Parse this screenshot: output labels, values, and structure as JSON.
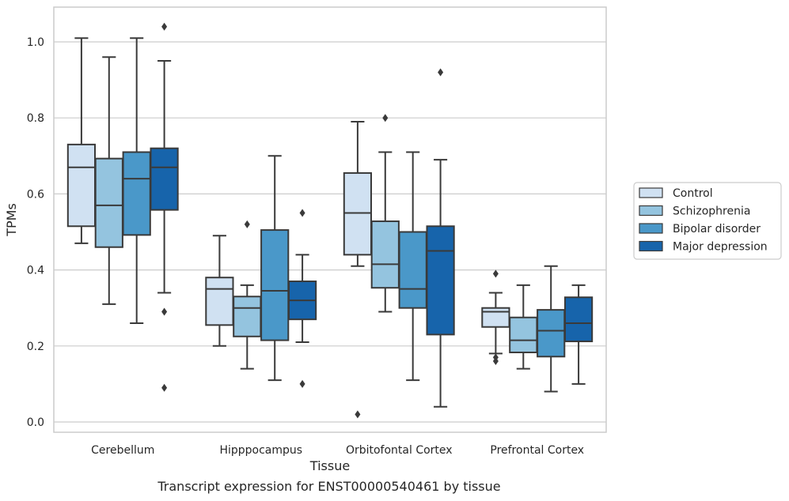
{
  "caption": "Transcript expression for ENST00000540461 by tissue",
  "colors": {
    "control": "#d0e1f2",
    "schizophrenia": "#94c4df",
    "bipolar": "#4a98c9",
    "depression": "#1764ab",
    "line": "#3a3a3a",
    "grid": "#cccccc",
    "frame": "#cccccc"
  },
  "chart_data": {
    "type": "box",
    "xlabel": "Tissue",
    "ylabel": "TPMs",
    "ylim": [
      -0.03,
      1.09
    ],
    "yticks": [
      "0.0",
      "0.2",
      "0.4",
      "0.6",
      "0.8",
      "1.0"
    ],
    "grid": "horizontal",
    "legend_position": "right",
    "categories": [
      "Cerebellum",
      "Hipppocampus",
      "Orbitofontal Cortex",
      "Prefrontal Cortex"
    ],
    "series": [
      {
        "name": "Control",
        "boxes": [
          {
            "whislo": 0.47,
            "q1": 0.515,
            "med": 0.67,
            "q3": 0.73,
            "whishi": 1.01,
            "fliers": []
          },
          {
            "whislo": 0.2,
            "q1": 0.255,
            "med": 0.35,
            "q3": 0.38,
            "whishi": 0.49,
            "fliers": []
          },
          {
            "whislo": 0.41,
            "q1": 0.44,
            "med": 0.55,
            "q3": 0.655,
            "whishi": 0.79,
            "fliers": [
              0.02
            ]
          },
          {
            "whislo": 0.18,
            "q1": 0.25,
            "med": 0.29,
            "q3": 0.3,
            "whishi": 0.34,
            "fliers": [
              0.39,
              0.17,
              0.16
            ]
          }
        ]
      },
      {
        "name": "Schizophrenia",
        "boxes": [
          {
            "whislo": 0.31,
            "q1": 0.46,
            "med": 0.57,
            "q3": 0.693,
            "whishi": 0.96,
            "fliers": []
          },
          {
            "whislo": 0.14,
            "q1": 0.225,
            "med": 0.3,
            "q3": 0.33,
            "whishi": 0.36,
            "fliers": [
              0.52
            ]
          },
          {
            "whislo": 0.29,
            "q1": 0.353,
            "med": 0.415,
            "q3": 0.528,
            "whishi": 0.71,
            "fliers": [
              0.8
            ]
          },
          {
            "whislo": 0.14,
            "q1": 0.183,
            "med": 0.215,
            "q3": 0.275,
            "whishi": 0.36,
            "fliers": []
          }
        ]
      },
      {
        "name": "Bipolar disorder",
        "boxes": [
          {
            "whislo": 0.26,
            "q1": 0.492,
            "med": 0.64,
            "q3": 0.71,
            "whishi": 1.01,
            "fliers": []
          },
          {
            "whislo": 0.11,
            "q1": 0.215,
            "med": 0.345,
            "q3": 0.505,
            "whishi": 0.7,
            "fliers": []
          },
          {
            "whislo": 0.11,
            "q1": 0.3,
            "med": 0.35,
            "q3": 0.5,
            "whishi": 0.71,
            "fliers": []
          },
          {
            "whislo": 0.08,
            "q1": 0.172,
            "med": 0.24,
            "q3": 0.295,
            "whishi": 0.41,
            "fliers": []
          }
        ]
      },
      {
        "name": "Major depression",
        "boxes": [
          {
            "whislo": 0.34,
            "q1": 0.558,
            "med": 0.67,
            "q3": 0.72,
            "whishi": 0.95,
            "fliers": [
              1.04,
              0.29,
              0.09
            ]
          },
          {
            "whislo": 0.21,
            "q1": 0.27,
            "med": 0.32,
            "q3": 0.37,
            "whishi": 0.44,
            "fliers": [
              0.55,
              0.1
            ]
          },
          {
            "whislo": 0.04,
            "q1": 0.23,
            "med": 0.45,
            "q3": 0.515,
            "whishi": 0.69,
            "fliers": [
              0.92
            ]
          },
          {
            "whislo": 0.1,
            "q1": 0.212,
            "med": 0.26,
            "q3": 0.328,
            "whishi": 0.36,
            "fliers": []
          }
        ]
      }
    ]
  }
}
